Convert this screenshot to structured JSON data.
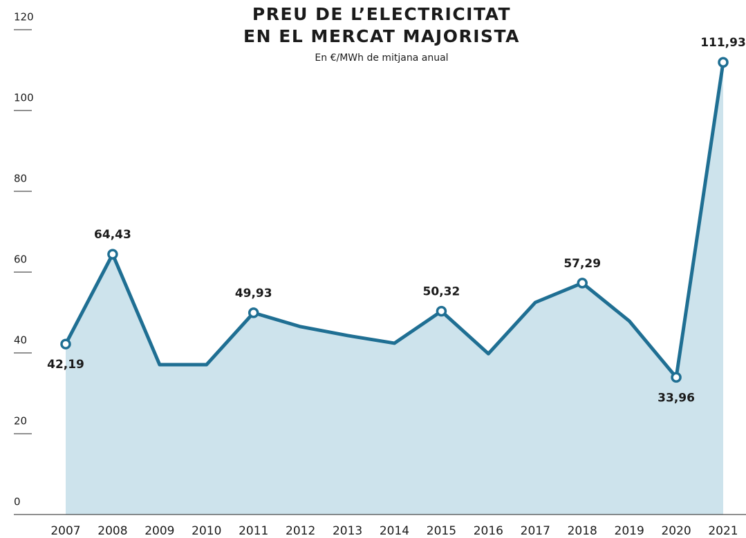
{
  "chart_data": {
    "type": "area",
    "title": [
      "PREU DE L’ELECTRICITAT",
      "EN EL MERCAT MAJORISTA"
    ],
    "subtitle": "En €/MWh de mitjana anual",
    "categories": [
      "2007",
      "2008",
      "2009",
      "2010",
      "2011",
      "2012",
      "2013",
      "2014",
      "2015",
      "2016",
      "2017",
      "2018",
      "2019",
      "2020",
      "2021"
    ],
    "values": [
      42.19,
      64.43,
      37.1,
      37.1,
      49.93,
      46.5,
      44.3,
      42.4,
      50.32,
      39.8,
      52.5,
      57.29,
      47.9,
      33.96,
      111.93
    ],
    "value_labels": [
      "42,19",
      "64,43",
      null,
      null,
      "49,93",
      null,
      null,
      null,
      "50,32",
      null,
      null,
      "57,29",
      null,
      "33,96",
      "111,93"
    ],
    "color": "#1f6f93",
    "fill_color": "#cde3ec",
    "ylim": [
      0,
      120
    ],
    "yticks": [
      0,
      20,
      40,
      60,
      80,
      100,
      120
    ]
  }
}
